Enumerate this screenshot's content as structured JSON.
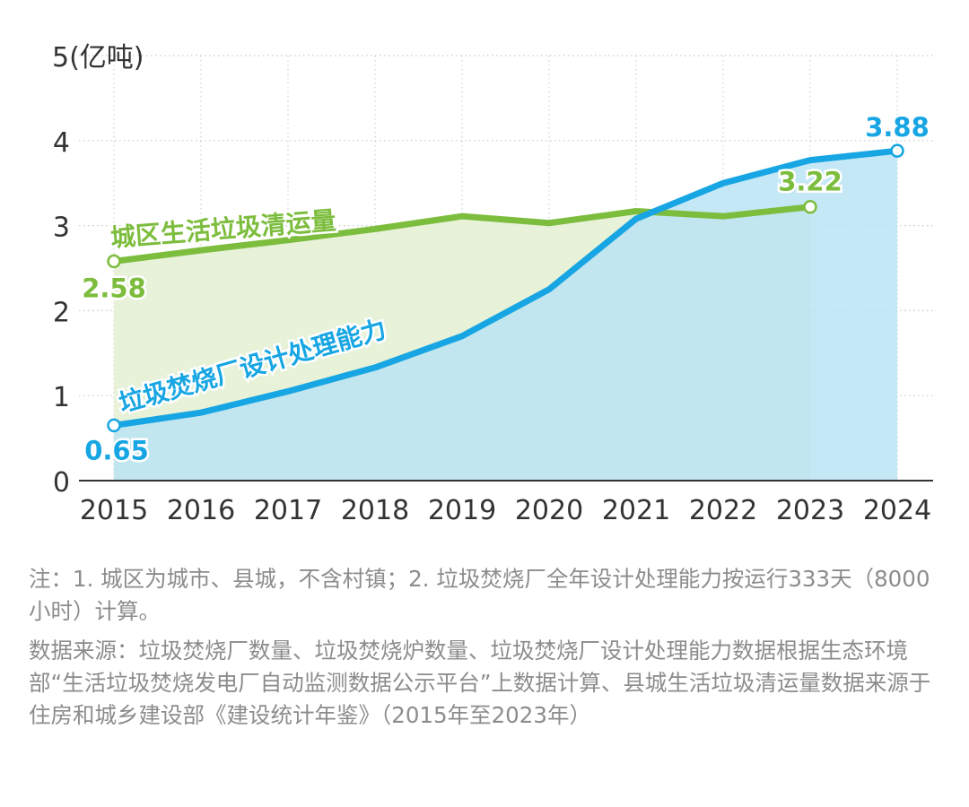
{
  "chart_data": {
    "type": "area",
    "x": [
      2015,
      2016,
      2017,
      2018,
      2019,
      2020,
      2021,
      2022,
      2023,
      2024
    ],
    "ylim": [
      0,
      5
    ],
    "yticks": [
      0,
      1,
      2,
      3,
      4
    ],
    "y_top_label": "5(亿吨)",
    "grid": "dotted",
    "series": [
      {
        "name": "城区生活垃圾清运量",
        "color": "#7dbd3e",
        "fill": "#e7f2d9",
        "x": [
          2015,
          2016,
          2017,
          2018,
          2019,
          2020,
          2021,
          2022,
          2023
        ],
        "values": [
          2.58,
          2.71,
          2.83,
          2.96,
          3.11,
          3.03,
          3.17,
          3.11,
          3.22
        ],
        "start_label": "2.58",
        "end_label": "3.22"
      },
      {
        "name": "垃圾焚烧厂设计处理能力",
        "color": "#17a6e3",
        "fill": "#b8e3f4",
        "x": [
          2015,
          2016,
          2017,
          2018,
          2019,
          2020,
          2021,
          2022,
          2023,
          2024
        ],
        "values": [
          0.65,
          0.8,
          1.05,
          1.33,
          1.7,
          2.25,
          3.08,
          3.5,
          3.77,
          3.88
        ],
        "start_label": "0.65",
        "end_label": "3.88"
      }
    ]
  },
  "notes": {
    "note": "注：1. 城区为城市、县城，不含村镇；2. 垃圾焚烧厂全年设计处理能力按运行333天（8000小时）计算。",
    "source": "数据来源：垃圾焚烧厂数量、垃圾焚烧炉数量、垃圾焚烧厂设计处理能力数据根据生态环境部“生活垃圾焚烧发电厂自动监测数据公示平台”上数据计算、县城生活垃圾清运量数据来源于住房和城乡建设部《建设统计年鉴》（2015年至2023年）"
  }
}
